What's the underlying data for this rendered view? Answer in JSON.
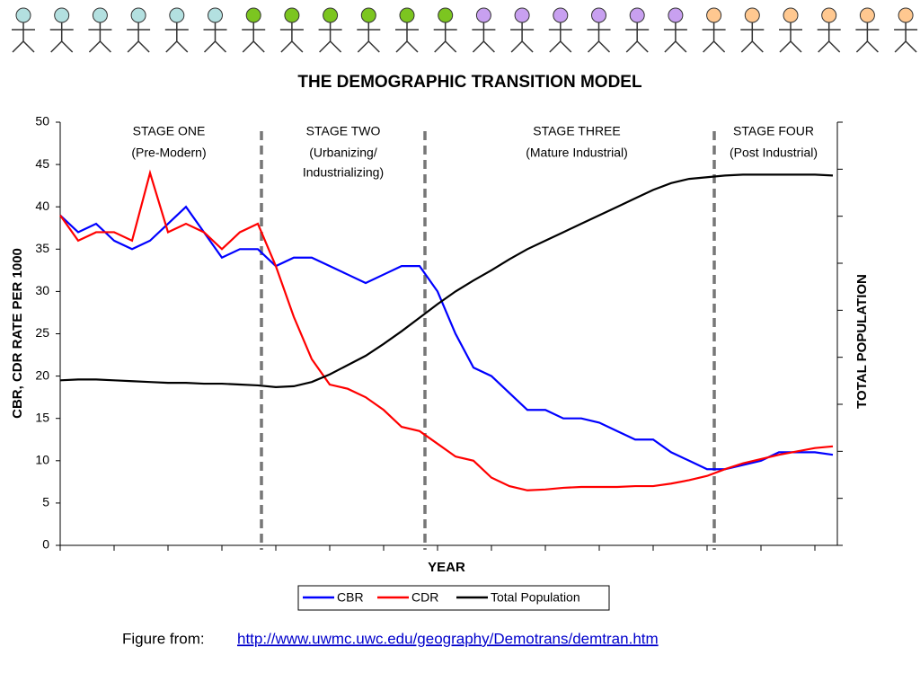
{
  "chart_data": {
    "type": "line",
    "title": "THE DEMOGRAPHIC TRANSITION MODEL",
    "x_label": "YEAR",
    "y_label": "CBR, CDR RATE PER 1000",
    "y2_label": "TOTAL POPULATION",
    "stages": [
      {
        "title": "STAGE ONE",
        "lines": [
          "(Pre-Modern)"
        ]
      },
      {
        "title": "STAGE TWO",
        "lines": [
          "(Urbanizing/",
          "Industrializing)"
        ]
      },
      {
        "title": "STAGE THREE",
        "lines": [
          "(Mature Industrial)"
        ]
      },
      {
        "title": "STAGE FOUR",
        "lines": [
          "(Post Industrial)"
        ]
      }
    ],
    "categories": [
      null,
      null,
      null,
      null,
      null,
      null,
      null,
      null,
      null,
      null,
      null,
      null,
      null,
      null,
      null,
      null,
      null,
      null,
      null,
      null,
      null,
      null,
      null,
      null,
      null,
      null,
      null,
      null,
      null,
      null,
      null,
      null,
      null,
      null,
      null,
      null,
      null,
      null,
      null,
      null,
      null,
      null,
      null,
      null
    ],
    "ylim": [
      0,
      50
    ],
    "yticks": [
      0,
      5,
      10,
      15,
      20,
      25,
      30,
      35,
      40,
      45,
      50
    ],
    "series": [
      {
        "name": "CBR",
        "color": "#0000ff",
        "values": [
          39,
          37,
          38,
          36,
          35,
          36,
          38,
          40,
          37,
          34,
          35,
          35,
          33,
          34,
          34,
          33,
          32,
          31,
          32,
          33,
          33,
          30,
          25,
          21,
          20,
          18,
          16,
          16,
          15,
          15,
          14.5,
          13.5,
          12.5,
          12.5,
          11,
          10,
          9,
          9,
          9.5,
          10,
          11,
          11,
          11,
          10.7
        ]
      },
      {
        "name": "CDR",
        "color": "#ff0000",
        "values": [
          39,
          36,
          37,
          37,
          36,
          44,
          37,
          38,
          37,
          35,
          37,
          38,
          33,
          27,
          22,
          19,
          18.5,
          17.5,
          16,
          14,
          13.5,
          12,
          10.5,
          10,
          8,
          7,
          6.5,
          6.6,
          6.8,
          6.9,
          6.9,
          6.9,
          7,
          7,
          7.3,
          7.7,
          8.2,
          9,
          9.7,
          10.2,
          10.7,
          11.1,
          11.5,
          11.7
        ]
      },
      {
        "name": "Total Population",
        "color": "#000000",
        "values": [
          19.5,
          19.6,
          19.6,
          19.5,
          19.4,
          19.3,
          19.2,
          19.2,
          19.1,
          19.1,
          19,
          18.9,
          18.7,
          18.8,
          19.3,
          20.2,
          21.3,
          22.4,
          23.8,
          25.3,
          26.9,
          28.5,
          30,
          31.3,
          32.5,
          33.8,
          35,
          36,
          37,
          38,
          39,
          40,
          41,
          42,
          42.8,
          43.3,
          43.5,
          43.7,
          43.8,
          43.8,
          43.8,
          43.8,
          43.8,
          43.7
        ]
      }
    ]
  },
  "caption": {
    "prefix": "Figure from:",
    "link": "http://www.uwmc.uwc.edu/geography/Demotrans/demtran.htm"
  }
}
